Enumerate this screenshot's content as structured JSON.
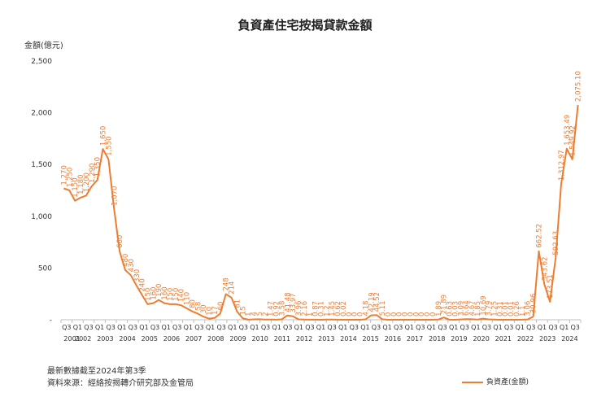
{
  "chart_data": {
    "type": "line",
    "title": "負資產住宅按揭貸款金額",
    "ylabel": "金額(億元)",
    "ylim": [
      0,
      2500
    ],
    "yticks": [
      0,
      500,
      1000,
      1500,
      2000,
      2500
    ],
    "ytick_labels": [
      "-",
      "500",
      "1,000",
      "1,500",
      "2,000",
      "2,500"
    ],
    "grid": false,
    "legend_position": "bottom-right",
    "x_ticks": [
      {
        "q": "Q3",
        "year": "2001"
      },
      {
        "q": "Q1",
        "year": "2002"
      },
      {
        "q": "Q3",
        "year": ""
      },
      {
        "q": "Q1",
        "year": "2003"
      },
      {
        "q": "Q3",
        "year": ""
      },
      {
        "q": "Q1",
        "year": "2004"
      },
      {
        "q": "Q3",
        "year": ""
      },
      {
        "q": "Q1",
        "year": "2005"
      },
      {
        "q": "Q3",
        "year": ""
      },
      {
        "q": "Q1",
        "year": "2006"
      },
      {
        "q": "Q3",
        "year": ""
      },
      {
        "q": "Q1",
        "year": "2007"
      },
      {
        "q": "Q3",
        "year": ""
      },
      {
        "q": "Q1",
        "year": "2008"
      },
      {
        "q": "Q3",
        "year": ""
      },
      {
        "q": "Q1",
        "year": "2009"
      },
      {
        "q": "Q3",
        "year": ""
      },
      {
        "q": "Q1",
        "year": "2010"
      },
      {
        "q": "Q3",
        "year": ""
      },
      {
        "q": "Q1",
        "year": "2011"
      },
      {
        "q": "Q3",
        "year": ""
      },
      {
        "q": "Q1",
        "year": "2012"
      },
      {
        "q": "Q3",
        "year": ""
      },
      {
        "q": "Q1",
        "year": "2013"
      },
      {
        "q": "Q3",
        "year": ""
      },
      {
        "q": "Q1",
        "year": "2014"
      },
      {
        "q": "Q3",
        "year": ""
      },
      {
        "q": "Q1",
        "year": "2015"
      },
      {
        "q": "Q3",
        "year": ""
      },
      {
        "q": "Q1",
        "year": "2016"
      },
      {
        "q": "Q3",
        "year": ""
      },
      {
        "q": "Q1",
        "year": "2017"
      },
      {
        "q": "Q3",
        "year": ""
      },
      {
        "q": "Q1",
        "year": "2018"
      },
      {
        "q": "Q3",
        "year": ""
      },
      {
        "q": "Q1",
        "year": "2019"
      },
      {
        "q": "Q3",
        "year": ""
      },
      {
        "q": "Q1",
        "year": "2020"
      },
      {
        "q": "Q3",
        "year": ""
      },
      {
        "q": "Q1",
        "year": "2021"
      },
      {
        "q": "Q3",
        "year": ""
      },
      {
        "q": "Q1",
        "year": "2022"
      },
      {
        "q": "Q3",
        "year": ""
      },
      {
        "q": "Q1",
        "year": "2023"
      },
      {
        "q": "Q3",
        "year": ""
      },
      {
        "q": "Q1",
        "year": "2024"
      },
      {
        "q": "Q3",
        "year": ""
      }
    ],
    "series": [
      {
        "name": "負資產(金額)",
        "color": "#ed7d31",
        "values": [
          1270,
          1250,
          1150,
          1180,
          1200,
          1290,
          1350,
          1650,
          1550,
          1070,
          660,
          480,
          430,
          330,
          240,
          150,
          160,
          190,
          160,
          150,
          150,
          140,
          110,
          80,
          58,
          30,
          10,
          17,
          60,
          248,
          214,
          81,
          15,
          1,
          4,
          5,
          2,
          1.47,
          0.92,
          3.58,
          41.48,
          33.97,
          3.96,
          2.16,
          1,
          0.87,
          0.31,
          1.2,
          1.45,
          0.62,
          0.02,
          0,
          0,
          0,
          4.18,
          42.19,
          44.52,
          5.11,
          0,
          0,
          0,
          0,
          0,
          0,
          0,
          0,
          0,
          1.89,
          21.89,
          0.63,
          0.03,
          3.09,
          6.64,
          4.67,
          1.85,
          10.69,
          3.79,
          1.25,
          0.31,
          0.01,
          0.01,
          0.26,
          1.1,
          3.06,
          30.96,
          662.52,
          343.62,
          173.51,
          592.63,
          1312.97,
          1653.49,
          1549.92,
          2075.1
        ],
        "labels": [
          "1,270",
          "1,250",
          "1,150",
          "1,180",
          "1,200",
          "1,290",
          "1,350",
          "1,650",
          "1,550",
          "1,070",
          "660",
          "480",
          "430",
          "330",
          "240",
          "150",
          "160",
          "190",
          "160",
          "150",
          "150",
          "140",
          "110",
          "80",
          "58",
          "30",
          "10",
          "17",
          "60",
          "248",
          "214",
          "81",
          "15",
          "1",
          "4",
          "5",
          "2",
          "1.47",
          "0.92",
          "3.58",
          "41.48",
          "33.97",
          "3.96",
          "2.16",
          "1",
          "0.87",
          "0.31",
          "1.2",
          "1.45",
          "0.62",
          "0.02",
          "0",
          "0",
          "0",
          "4.18",
          "42.19",
          "44.52",
          "5.11",
          "0",
          "0",
          "0",
          "0",
          "0",
          "0",
          "0",
          "0",
          "0",
          "1.89",
          "21.89",
          "0.63",
          "0.03",
          "3.09",
          "6.64",
          "4.67",
          "1.85",
          "10.69",
          "3.79",
          "1.25",
          "0.31",
          "0.01",
          "0.01",
          "0.26",
          "1.1",
          "3.06",
          "30.96",
          "662.52",
          "343.62",
          "173.51",
          "592.63",
          "1,312.97",
          "1,653.49",
          "1,549.92",
          "2,075.10"
        ]
      }
    ]
  },
  "notes": {
    "line1": "最新數據截至2024年第3季",
    "line2": "資料來源：經絡按揭轉介研究部及金管局"
  },
  "legend": {
    "label": "負資產(金額)"
  }
}
